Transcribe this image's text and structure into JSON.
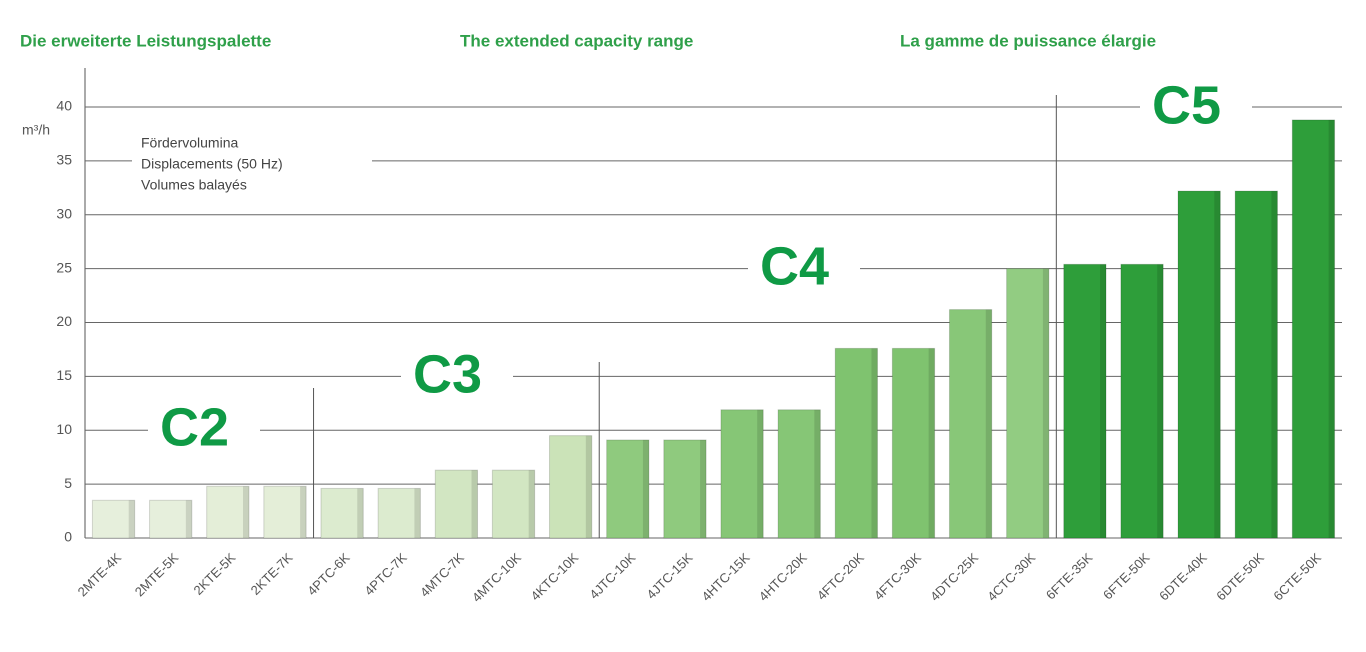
{
  "chart_data": {
    "type": "bar",
    "titles": [
      "Die erweiterte Leistungspalette",
      "The extended capacity range",
      "La gamme de puissance élargie"
    ],
    "y_label": "m³/h",
    "annotation": [
      "Fördervolumina",
      "Displacements (50 Hz)",
      "Volumes balayés"
    ],
    "groups": [
      "C2",
      "C3",
      "C4",
      "C5"
    ],
    "categories": [
      "2MTE-4K",
      "2MTE-5K",
      "2KTE-5K",
      "2KTE-7K",
      "4PTC-6K",
      "4PTC-7K",
      "4MTC-7K",
      "4MTC-10K",
      "4KTC-10K",
      "4JTC-10K",
      "4JTC-15K",
      "4HTC-15K",
      "4HTC-20K",
      "4FTC-20K",
      "4FTC-30K",
      "4DTC-25K",
      "4CTC-30K",
      "6FTE-35K",
      "6FTE-50K",
      "6DTE-40K",
      "6DTE-50K",
      "6CTE-50K"
    ],
    "values": [
      3.5,
      3.5,
      4.8,
      4.8,
      4.6,
      4.6,
      6.3,
      6.3,
      9.5,
      9.1,
      9.1,
      11.9,
      11.9,
      17.6,
      17.6,
      21.2,
      25.0,
      25.4,
      25.4,
      32.2,
      32.2,
      38.8
    ],
    "colors": [
      "#e6efdc",
      "#e6efdc",
      "#e4eed8",
      "#e4eed8",
      "#dcebcf",
      "#dcebcf",
      "#d2e6c2",
      "#d2e6c2",
      "#cbe3b8",
      "#8fca7e",
      "#8fca7e",
      "#86c676",
      "#86c676",
      "#7fc36f",
      "#7fc36f",
      "#88c778",
      "#92cc82",
      "#2e9e3a",
      "#2e9e3a",
      "#2e9e3a",
      "#2e9e3a",
      "#2e9e3a"
    ],
    "ylim": [
      0,
      40
    ],
    "yticks": [
      0,
      5,
      10,
      15,
      20,
      25,
      30,
      35,
      40
    ],
    "grid": true
  }
}
